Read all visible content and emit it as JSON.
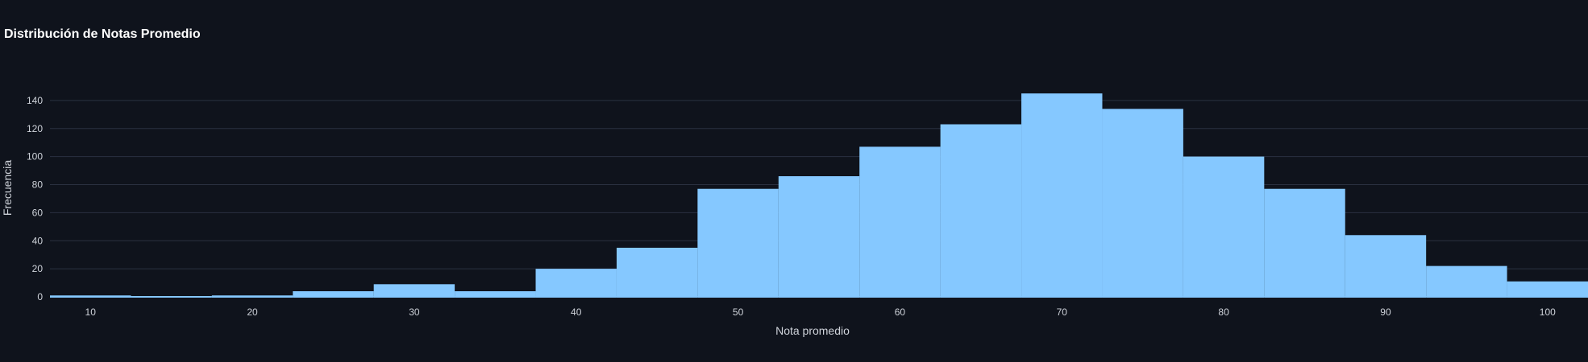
{
  "chart_data": {
    "type": "bar",
    "title": "Distribución de Notas Promedio",
    "xlabel": "Nota promedio",
    "ylabel": "Frecuencia",
    "bin_width": 5,
    "bins": [
      {
        "start": 7.5,
        "end": 12.5,
        "count": 1
      },
      {
        "start": 12.5,
        "end": 17.5,
        "count": 0
      },
      {
        "start": 17.5,
        "end": 22.5,
        "count": 1
      },
      {
        "start": 22.5,
        "end": 27.5,
        "count": 4
      },
      {
        "start": 27.5,
        "end": 32.5,
        "count": 9
      },
      {
        "start": 32.5,
        "end": 37.5,
        "count": 4
      },
      {
        "start": 37.5,
        "end": 42.5,
        "count": 20
      },
      {
        "start": 42.5,
        "end": 47.5,
        "count": 35
      },
      {
        "start": 47.5,
        "end": 52.5,
        "count": 77
      },
      {
        "start": 52.5,
        "end": 57.5,
        "count": 86
      },
      {
        "start": 57.5,
        "end": 62.5,
        "count": 107
      },
      {
        "start": 62.5,
        "end": 67.5,
        "count": 123
      },
      {
        "start": 67.5,
        "end": 72.5,
        "count": 145
      },
      {
        "start": 72.5,
        "end": 77.5,
        "count": 134
      },
      {
        "start": 77.5,
        "end": 82.5,
        "count": 100
      },
      {
        "start": 82.5,
        "end": 87.5,
        "count": 77
      },
      {
        "start": 87.5,
        "end": 92.5,
        "count": 44
      },
      {
        "start": 92.5,
        "end": 97.5,
        "count": 22
      },
      {
        "start": 97.5,
        "end": 102.5,
        "count": 11
      }
    ],
    "xlim": [
      7.5,
      102.5
    ],
    "ylim": [
      0,
      160
    ],
    "xticks": [
      10,
      20,
      30,
      40,
      50,
      60,
      70,
      80,
      90,
      100
    ],
    "yticks": [
      0,
      20,
      40,
      60,
      80,
      100,
      120,
      140
    ],
    "grid": true,
    "legend": "none",
    "colors": {
      "bar": "#85c8ff",
      "background": "#0f131c",
      "grid": "#2a3140",
      "text": "#cfd3da"
    }
  }
}
